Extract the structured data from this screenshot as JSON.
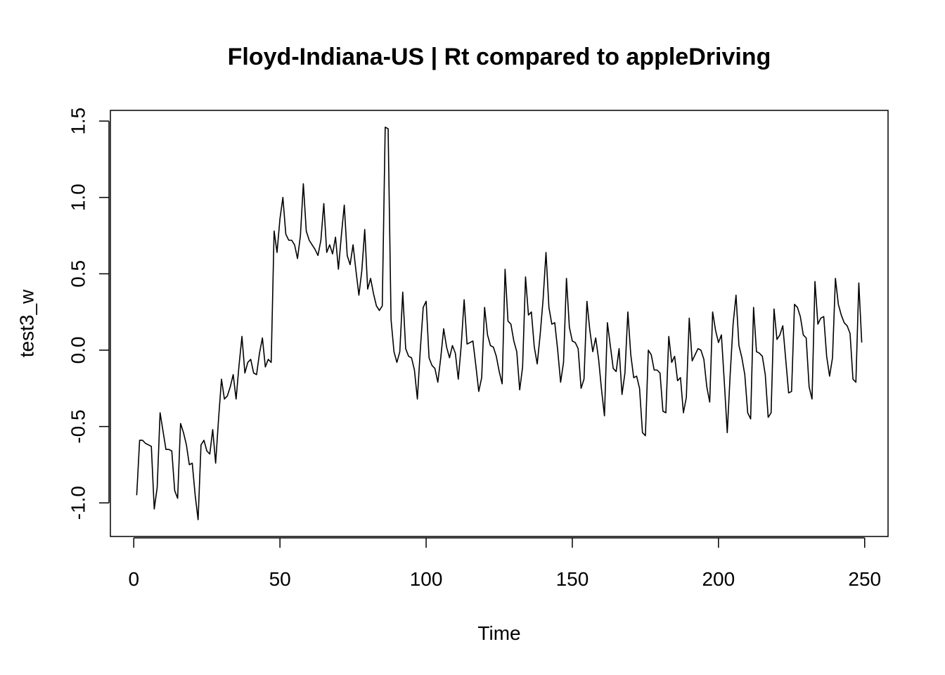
{
  "chart_data": {
    "type": "line",
    "title": "Floyd-Indiana-US | Rt compared to appleDriving",
    "xlabel": "Time",
    "ylabel": "test3_w",
    "xlim": [
      -8,
      258
    ],
    "ylim": [
      -1.22,
      1.57
    ],
    "x_ticks": [
      0,
      50,
      100,
      150,
      200,
      250
    ],
    "x_tick_labels": [
      "0",
      "50",
      "100",
      "150",
      "200",
      "250"
    ],
    "y_ticks": [
      -1.0,
      -0.5,
      0.0,
      0.5,
      1.0,
      1.5
    ],
    "y_tick_labels": [
      "-1.0",
      "-0.5",
      "0.0",
      "0.5",
      "1.0",
      "1.5"
    ],
    "grid": false,
    "legend": "none",
    "series": [
      {
        "color": "#000000",
        "x_start": 1,
        "x_step": 1,
        "values": [
          -0.95,
          -0.59,
          -0.59,
          -0.61,
          -0.62,
          -0.63,
          -1.04,
          -0.9,
          -0.41,
          -0.53,
          -0.65,
          -0.65,
          -0.66,
          -0.92,
          -0.97,
          -0.48,
          -0.54,
          -0.62,
          -0.75,
          -0.74,
          -0.95,
          -1.11,
          -0.62,
          -0.59,
          -0.66,
          -0.68,
          -0.52,
          -0.74,
          -0.45,
          -0.19,
          -0.32,
          -0.3,
          -0.24,
          -0.16,
          -0.32,
          -0.1,
          0.09,
          -0.15,
          -0.08,
          -0.06,
          -0.15,
          -0.16,
          -0.02,
          0.08,
          -0.11,
          -0.06,
          -0.08,
          0.78,
          0.64,
          0.86,
          1.0,
          0.76,
          0.72,
          0.72,
          0.69,
          0.6,
          0.75,
          1.09,
          0.78,
          0.72,
          0.69,
          0.66,
          0.62,
          0.72,
          0.96,
          0.64,
          0.69,
          0.63,
          0.74,
          0.53,
          0.75,
          0.95,
          0.62,
          0.56,
          0.69,
          0.52,
          0.36,
          0.52,
          0.79,
          0.4,
          0.47,
          0.37,
          0.29,
          0.26,
          0.29,
          1.46,
          1.45,
          0.2,
          -0.01,
          -0.08,
          -0.01,
          0.38,
          0.01,
          -0.04,
          -0.05,
          -0.13,
          -0.32,
          0.0,
          0.28,
          0.32,
          -0.05,
          -0.1,
          -0.12,
          -0.21,
          -0.05,
          0.14,
          0.02,
          -0.05,
          0.03,
          -0.02,
          -0.19,
          0.03,
          0.33,
          0.04,
          0.05,
          0.06,
          -0.1,
          -0.27,
          -0.18,
          0.28,
          0.1,
          0.03,
          0.02,
          -0.04,
          -0.14,
          -0.22,
          0.53,
          0.19,
          0.17,
          0.06,
          -0.01,
          -0.26,
          -0.11,
          0.48,
          0.23,
          0.25,
          0.02,
          -0.09,
          0.1,
          0.33,
          0.64,
          0.28,
          0.17,
          0.18,
          0.0,
          -0.21,
          -0.08,
          0.47,
          0.15,
          0.06,
          0.05,
          0.01,
          -0.25,
          -0.19,
          0.32,
          0.13,
          -0.01,
          0.08,
          -0.06,
          -0.26,
          -0.43,
          0.18,
          0.03,
          -0.12,
          -0.14,
          0.01,
          -0.29,
          -0.15,
          0.25,
          -0.03,
          -0.18,
          -0.17,
          -0.25,
          -0.54,
          -0.56,
          0.0,
          -0.03,
          -0.13,
          -0.13,
          -0.15,
          -0.4,
          -0.41,
          0.09,
          -0.08,
          -0.04,
          -0.2,
          -0.18,
          -0.41,
          -0.31,
          0.21,
          -0.07,
          -0.03,
          0.01,
          0.0,
          -0.06,
          -0.24,
          -0.34,
          0.25,
          0.13,
          0.05,
          0.1,
          -0.21,
          -0.54,
          -0.16,
          0.17,
          0.36,
          0.03,
          -0.05,
          -0.16,
          -0.41,
          -0.45,
          0.28,
          -0.01,
          -0.02,
          -0.04,
          -0.16,
          -0.44,
          -0.41,
          0.27,
          0.07,
          0.1,
          0.16,
          -0.06,
          -0.28,
          -0.27,
          0.3,
          0.28,
          0.22,
          0.1,
          0.08,
          -0.24,
          -0.32,
          0.45,
          0.17,
          0.21,
          0.22,
          -0.04,
          -0.17,
          -0.05,
          0.47,
          0.3,
          0.23,
          0.18,
          0.16,
          0.11,
          -0.19,
          -0.21,
          0.44,
          0.05
        ]
      }
    ]
  }
}
